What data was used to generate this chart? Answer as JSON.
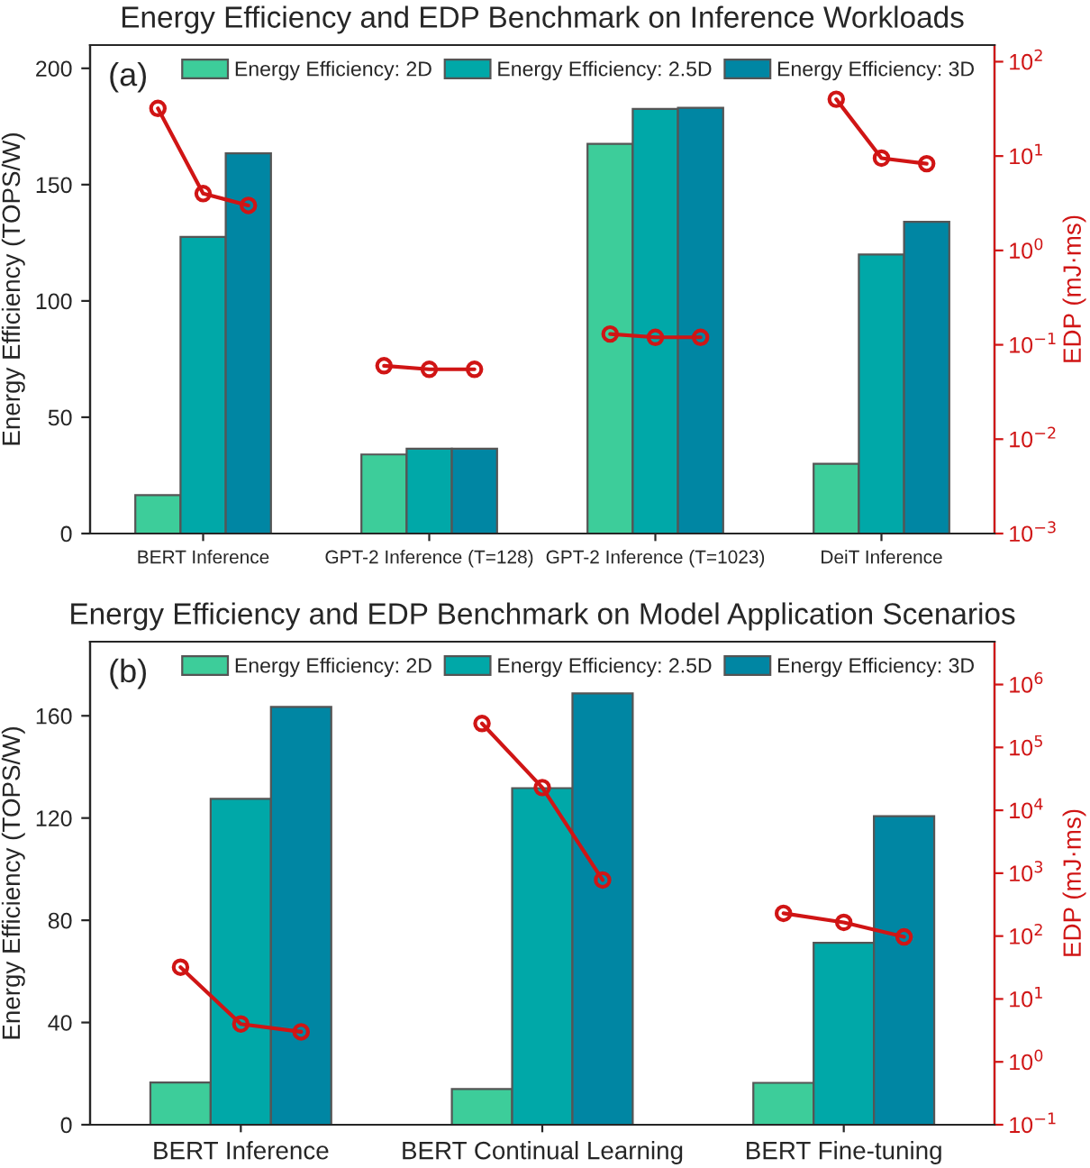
{
  "chart_data": [
    {
      "type": "bar",
      "title": "Energy Efficiency and EDP Benchmark on Inference Workloads",
      "ylabel": "Energy Efficiency (TOPS/W)",
      "y2label": "EDP (mJ·ms)",
      "annotations": [
        "(a)"
      ],
      "categories": [
        null,
        null,
        "BERT Inference",
        null,
        null,
        null,
        null,
        "GPT-2 Inference (T=128)",
        null,
        null,
        null,
        null,
        "GPT-2 Inference (T=1023)",
        null,
        null,
        null,
        null,
        "DeiT Inference",
        null,
        null
      ],
      "ylim": [
        0,
        210
      ],
      "yticks": [
        0,
        50,
        100,
        150,
        200
      ],
      "y2lim": [
        0.001,
        150
      ],
      "log": "y2",
      "y2ticks": [
        {
          "value": 0.001,
          "label": "10$^{−3}$"
        },
        {
          "value": 0.01,
          "label": "10$^{−2}$"
        },
        {
          "value": 0.1,
          "label": "10$^{−1}$"
        },
        {
          "value": 1,
          "label": "10$^{0}$"
        },
        {
          "value": 10,
          "label": "10$^{1}$"
        },
        {
          "value": 100,
          "label": "10$^{2}$"
        }
      ],
      "legend": "top",
      "grid": false,
      "series": [
        {
          "name": "Energy Efficiency: 2D",
          "color": "#3dcd9a",
          "values": [
            null,
            16.5,
            null,
            null,
            null,
            null,
            34,
            null,
            null,
            null,
            null,
            167.5,
            null,
            null,
            null,
            null,
            30,
            null,
            null,
            null
          ]
        },
        {
          "name": "Energy Efficiency: 2.5D",
          "color": "#00a8a8",
          "values": [
            null,
            null,
            127.5,
            null,
            null,
            null,
            null,
            36.5,
            null,
            null,
            null,
            null,
            182.5,
            null,
            null,
            null,
            null,
            120,
            null,
            null
          ]
        },
        {
          "name": "Energy Efficiency: 3D",
          "color": "#0086a3",
          "values": [
            null,
            null,
            null,
            163.5,
            null,
            null,
            null,
            null,
            36.5,
            null,
            null,
            null,
            null,
            183,
            null,
            null,
            null,
            null,
            134,
            null
          ]
        },
        {
          "type": "line",
          "axis": "y2",
          "color": "#d01515",
          "marker": "circle",
          "values": [
            null,
            32,
            4,
            3,
            null,
            null,
            0.06,
            0.055,
            0.055,
            null,
            null,
            0.13,
            0.12,
            0.12,
            null,
            null,
            40,
            9.5,
            8.3,
            null
          ]
        }
      ]
    },
    {
      "type": "bar",
      "title": "Energy Efficiency and EDP Benchmark on Model Application Scenarios",
      "ylabel": "Energy Efficiency (TOPS/W)",
      "y2label": "EDP (mJ·ms)",
      "annotations": [
        "(b)"
      ],
      "categories": [
        null,
        null,
        "BERT Inference",
        null,
        null,
        null,
        null,
        "BERT Continual Learning",
        null,
        null,
        null,
        null,
        "BERT Fine-tuning",
        null,
        null
      ],
      "ylim": [
        0,
        189
      ],
      "yticks": [
        0,
        40,
        80,
        120,
        160
      ],
      "y2lim": [
        0.1,
        4800000
      ],
      "log": "y2",
      "y2ticks": [
        {
          "value": 0.1,
          "label": "10$^{−1}$"
        },
        {
          "value": 1,
          "label": "10$^{0}$"
        },
        {
          "value": 10,
          "label": "10$^{1}$"
        },
        {
          "value": 100,
          "label": "10$^{2}$"
        },
        {
          "value": 1000,
          "label": "10$^{3}$"
        },
        {
          "value": 10000,
          "label": "10$^{4}$"
        },
        {
          "value": 100000,
          "label": "10$^{5}$"
        },
        {
          "value": 1000000,
          "label": "10$^{6}$"
        }
      ],
      "legend": "top",
      "grid": false,
      "series": [
        {
          "name": "Energy Efficiency: 2D",
          "color": "#3dcd9a",
          "values": [
            null,
            16.5,
            null,
            null,
            null,
            null,
            14,
            null,
            null,
            null,
            null,
            16.4,
            null,
            null,
            null
          ]
        },
        {
          "name": "Energy Efficiency: 2.5D",
          "color": "#00a8a8",
          "values": [
            null,
            null,
            127.5,
            null,
            null,
            null,
            null,
            131.7,
            null,
            null,
            null,
            null,
            71.2,
            null,
            null
          ]
        },
        {
          "name": "Energy Efficiency: 3D",
          "color": "#0086a3",
          "values": [
            null,
            null,
            null,
            163.5,
            null,
            null,
            null,
            null,
            168.8,
            null,
            null,
            null,
            null,
            120.7,
            null
          ]
        },
        {
          "type": "line",
          "axis": "y2",
          "color": "#d01515",
          "marker": "circle",
          "values": [
            null,
            32,
            4,
            3,
            null,
            null,
            240000,
            23000,
            780,
            null,
            null,
            230,
            165,
            97,
            null
          ]
        }
      ]
    }
  ]
}
